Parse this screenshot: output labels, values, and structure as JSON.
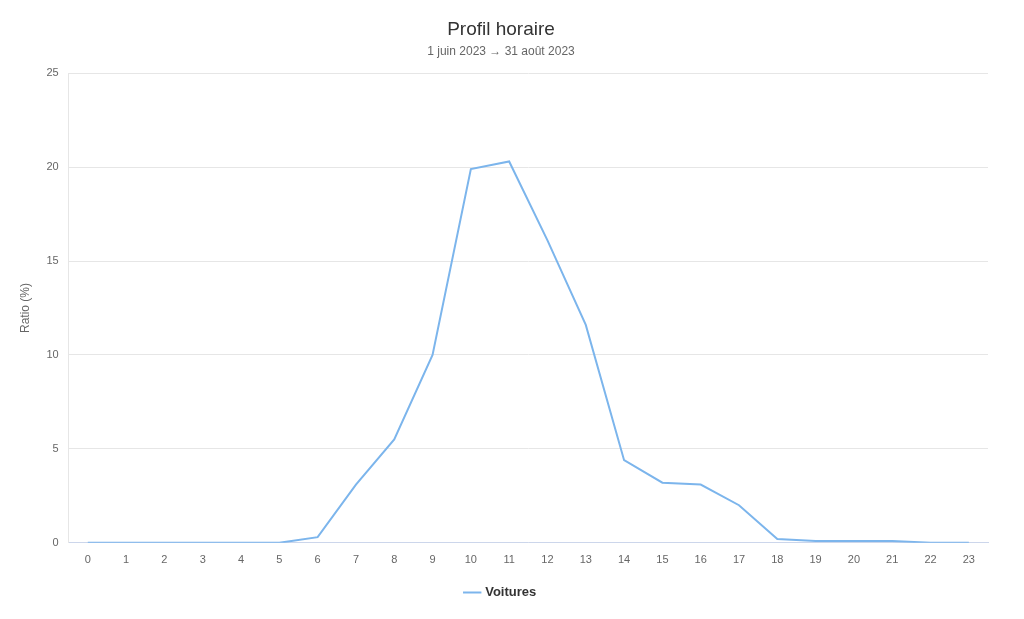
{
  "chart_data": {
    "type": "line",
    "title": "Profil horaire",
    "subtitle": "1 juin 2023 → 31 août 2023",
    "y_label": "Ratio (%)",
    "categories": [
      "0",
      "1",
      "2",
      "3",
      "4",
      "5",
      "6",
      "7",
      "8",
      "9",
      "10",
      "11",
      "12",
      "13",
      "14",
      "15",
      "16",
      "17",
      "18",
      "19",
      "20",
      "21",
      "22",
      "23"
    ],
    "series": [
      {
        "name": "Voitures",
        "color": "#7cb5ec",
        "marker": "none",
        "values": [
          0,
          0,
          0,
          0,
          0,
          0,
          0.3,
          3.1,
          5.5,
          10,
          19.9,
          20.3,
          16.1,
          11.6,
          4.4,
          3.2,
          3.1,
          2,
          0.2,
          0.1,
          0.1,
          0.1,
          0,
          0
        ]
      }
    ],
    "ylim": [
      0,
      25
    ],
    "yticks": [
      0,
      5,
      10,
      15,
      20,
      25
    ],
    "grid": true,
    "legend": "bottom"
  }
}
